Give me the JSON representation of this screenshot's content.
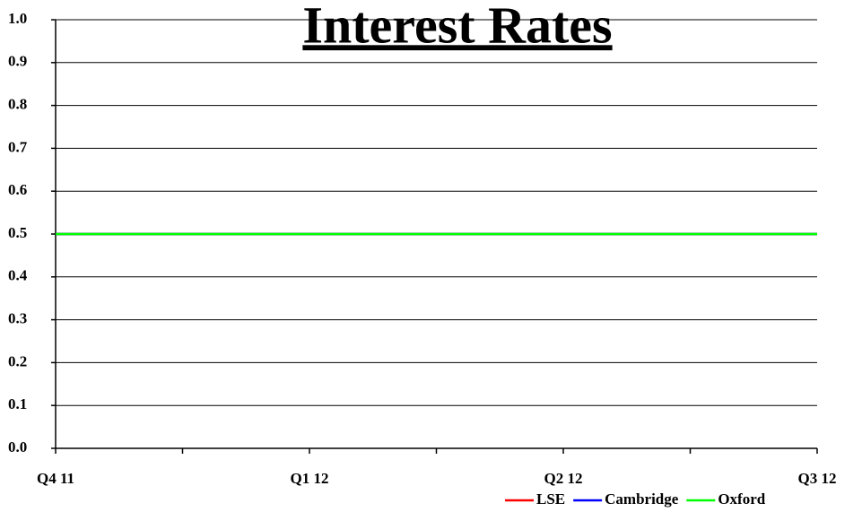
{
  "chart_data": {
    "type": "line",
    "title": "Interest Rates",
    "categories": [
      "Q4 11",
      null,
      "Q1 12",
      null,
      "Q2 12",
      null,
      "Q3 12"
    ],
    "series": [
      {
        "name": "LSE",
        "color": "#ff0000",
        "values": [
          0.5,
          0.5,
          0.5,
          0.5,
          0.5,
          0.5,
          0.5
        ]
      },
      {
        "name": "Cambridge",
        "color": "#0000ff",
        "values": [
          0.5,
          0.5,
          0.5,
          0.5,
          0.5,
          0.5,
          0.5
        ]
      },
      {
        "name": "Oxford",
        "color": "#00ff00",
        "values": [
          0.5,
          0.5,
          0.5,
          0.5,
          0.5,
          0.5,
          0.5
        ]
      }
    ],
    "ylim": [
      0,
      1
    ],
    "yticks": [
      {
        "value": 0,
        "label": "0.0"
      },
      0.1,
      0.2,
      0.3,
      0.4,
      0.5,
      0.6,
      0.7,
      0.8,
      0.9,
      {
        "value": 1,
        "label": "1.0"
      }
    ],
    "grid": true,
    "legend": "lower right"
  }
}
